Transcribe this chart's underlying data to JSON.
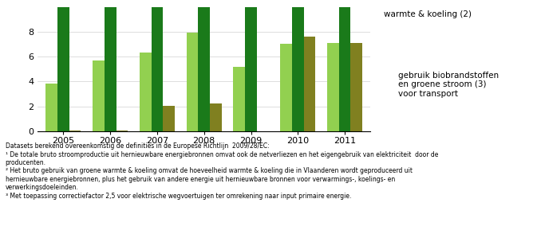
{
  "years": [
    "2005",
    "2006",
    "2007",
    "2008",
    "2009",
    "2010",
    "2011"
  ],
  "s0_vals": [
    3.8,
    5.7,
    6.3,
    7.9,
    5.2,
    7.0,
    7.1
  ],
  "s1_vals": [
    10.5,
    10.5,
    10.5,
    10.5,
    10.5,
    10.5,
    10.5
  ],
  "s2_vals": [
    0.05,
    0.05,
    2.05,
    2.2,
    0.0,
    7.6,
    7.1
  ],
  "color_s0": "#92d050",
  "color_s1": "#1a7a1a",
  "color_s2": "#808020",
  "ylim": [
    0,
    10
  ],
  "yticks": [
    0,
    2,
    4,
    6,
    8
  ],
  "bar_width": 0.25,
  "grid_color": "#d0d0d0",
  "legend_top_text": "warmte & koeling (2)",
  "legend_olive_text": "gebruik biobrandstoffen\nen groene stroom (3)\nvoor transport",
  "footnote_lines": [
    "Datasets berekend overeenkomstig de definities in de Europese Richtlijn  2009/28/EC:",
    "¹ De totale bruto stroomproductie uit hernieuwbare energiebronnen omvat ook de netverliezen en het eigengebruik van elektriciteit  door de",
    "producenten.",
    "² Het bruto gebruik van groene warmte & koeling omvat de hoeveelheid warmte & koeling die in Vlaanderen wordt geproduceerd uit",
    "hernieuwbare energiebronnen, plus het gebruik van andere energie uit hernieuwbare bronnen voor verwarmings-, koelings- en",
    "verwerkingsdoeleinden.",
    "³ Met toepassing correctiefactor 2,5 voor elektrische wegvoertuigen ter omrekening naar input primaire energie."
  ],
  "footnote_fontsize": 5.5,
  "legend_fontsize": 7.5,
  "tick_fontsize": 8
}
